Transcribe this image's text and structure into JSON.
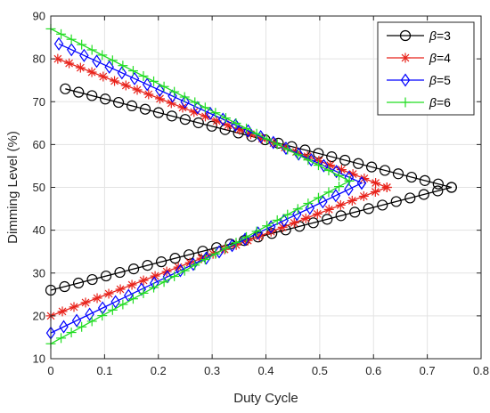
{
  "chart_data": {
    "type": "line",
    "title": "",
    "xlabel": "Duty Cycle",
    "ylabel": "Dimming Level (%)",
    "xlim": [
      0,
      0.8
    ],
    "ylim": [
      10,
      90
    ],
    "x_ticks": [
      0,
      0.1,
      0.2,
      0.3,
      0.4,
      0.5,
      0.6,
      0.7,
      0.8
    ],
    "y_ticks": [
      10,
      20,
      30,
      40,
      50,
      60,
      70,
      80,
      90
    ],
    "x_tick_labels": [
      "0",
      "0.1",
      "0.2",
      "0.3",
      "0.4",
      "0.5",
      "0.6",
      "0.7",
      "0.8"
    ],
    "y_tick_labels": [
      "10",
      "20",
      "30",
      "40",
      "50",
      "60",
      "70",
      "80",
      "90"
    ],
    "grid": true,
    "legend_position": "top-right",
    "series": [
      {
        "name": "β=3",
        "beta_label": "β",
        "value_label": "=3",
        "color": "#000000",
        "marker": "circle",
        "upper_start": [
          0.027,
          73
        ],
        "upper_end": [
          0.745,
          50
        ],
        "lower_start": [
          0.0,
          26
        ],
        "lower_end": [
          0.745,
          50
        ],
        "points_per_branch": 30
      },
      {
        "name": "β=4",
        "beta_label": "β",
        "value_label": "=4",
        "color": "#e8231b",
        "marker": "asterisk",
        "upper_start": [
          0.013,
          80
        ],
        "upper_end": [
          0.625,
          50
        ],
        "lower_start": [
          0.0,
          20
        ],
        "lower_end": [
          0.625,
          50
        ],
        "points_per_branch": 30
      },
      {
        "name": "β=5",
        "beta_label": "β",
        "value_label": "=5",
        "color": "#0000ff",
        "marker": "diamond",
        "upper_start": [
          0.015,
          83.5
        ],
        "upper_end": [
          0.578,
          51
        ],
        "lower_start": [
          0.0,
          16
        ],
        "lower_end": [
          0.578,
          51
        ],
        "points_per_branch": 25
      },
      {
        "name": "β=6",
        "beta_label": "β",
        "value_label": "=6",
        "color": "#22dd22",
        "marker": "plus",
        "upper_start": [
          0.0,
          87
        ],
        "upper_end": [
          0.555,
          51.5
        ],
        "lower_start": [
          0.0,
          13.5
        ],
        "lower_end": [
          0.555,
          51.5
        ],
        "points_per_branch": 30
      }
    ]
  }
}
